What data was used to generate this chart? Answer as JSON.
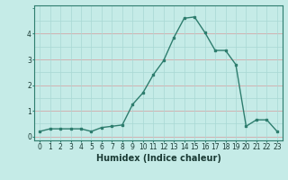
{
  "x": [
    0,
    1,
    2,
    3,
    4,
    5,
    6,
    7,
    8,
    9,
    10,
    11,
    12,
    13,
    14,
    15,
    16,
    17,
    18,
    19,
    20,
    21,
    22,
    23
  ],
  "y": [
    0.2,
    0.3,
    0.3,
    0.3,
    0.3,
    0.2,
    0.35,
    0.4,
    0.45,
    1.25,
    1.7,
    2.4,
    2.95,
    3.85,
    4.6,
    4.65,
    4.05,
    3.35,
    3.35,
    2.8,
    0.4,
    0.65,
    0.65,
    0.2
  ],
  "title": "",
  "xlabel": "Humidex (Indice chaleur)",
  "ylabel": "",
  "xlim": [
    -0.5,
    23.5
  ],
  "ylim": [
    -0.15,
    5.1
  ],
  "yticks": [
    0,
    1,
    2,
    3,
    4
  ],
  "xticks": [
    0,
    1,
    2,
    3,
    4,
    5,
    6,
    7,
    8,
    9,
    10,
    11,
    12,
    13,
    14,
    15,
    16,
    17,
    18,
    19,
    20,
    21,
    22,
    23
  ],
  "line_color": "#2e7d6e",
  "marker": "s",
  "marker_size": 2,
  "bg_color": "#c5ebe7",
  "grid_major_h_color": "#d4a8a8",
  "grid_minor_color": "#a8d8d4",
  "tick_label_fontsize": 5.5,
  "xlabel_fontsize": 7.0
}
